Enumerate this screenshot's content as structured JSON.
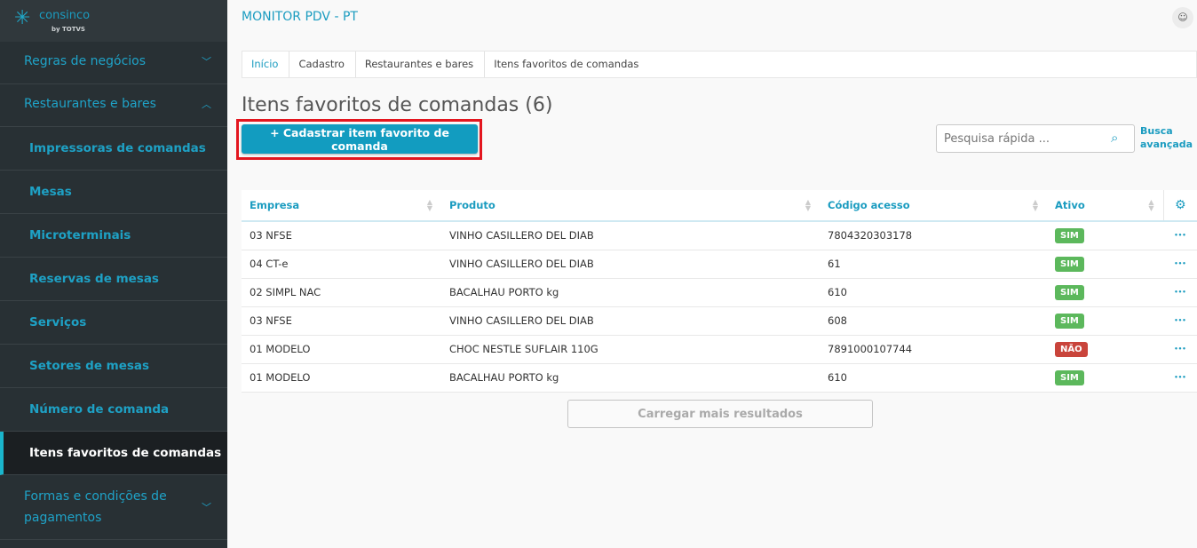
{
  "brand": {
    "name": "consinco",
    "by": "by TOTVS"
  },
  "sidebar": {
    "groups": [
      {
        "label": "Regras de negócios",
        "chevron": "chevron-down"
      },
      {
        "label": "Restaurantes e bares",
        "chevron": "chevron-up"
      }
    ],
    "items": [
      "Impressoras de comandas",
      "Mesas",
      "Microterminais",
      "Reservas de mesas",
      "Serviços",
      "Setores de mesas",
      "Número de comanda",
      "Itens favoritos de comandas"
    ],
    "active": "Itens favoritos de comandas",
    "last_group": {
      "label": "Formas e condições de pagamentos",
      "chevron": "chevron-down"
    }
  },
  "header": {
    "title": "MONITOR PDV - PT"
  },
  "breadcrumb": [
    "Início",
    "Cadastro",
    "Restaurantes e bares",
    "Itens favoritos de comandas"
  ],
  "page": {
    "title": "Itens favoritos de comandas (6)",
    "add_button": "+ Cadastrar item favorito de comanda",
    "search_placeholder": "Pesquisa rápida ...",
    "advanced_search": "Busca avançada",
    "load_more": "Carregar mais resultados"
  },
  "table": {
    "columns": [
      "Empresa",
      "Produto",
      "Código acesso",
      "Ativo"
    ],
    "rows": [
      [
        "03 NFSE",
        "VINHO CASILLERO DEL DIAB",
        "7804320303178",
        "SIM"
      ],
      [
        "04 CT-e",
        "VINHO CASILLERO DEL DIAB",
        "61",
        "SIM"
      ],
      [
        "02 SIMPL NAC",
        "BACALHAU PORTO kg",
        "610",
        "SIM"
      ],
      [
        "03 NFSE",
        "VINHO CASILLERO DEL DIAB",
        "608",
        "SIM"
      ],
      [
        "01 MODELO",
        "CHOC NESTLE SUFLAIR 110G",
        "7891000107744",
        "NÃO"
      ],
      [
        "01 MODELO",
        "BACALHAU PORTO kg",
        "610",
        "SIM"
      ]
    ]
  },
  "colors": {
    "accent": "#129cc0",
    "yes": "#5cb85c",
    "no": "#c9443b",
    "highlight": "#e3161f"
  }
}
